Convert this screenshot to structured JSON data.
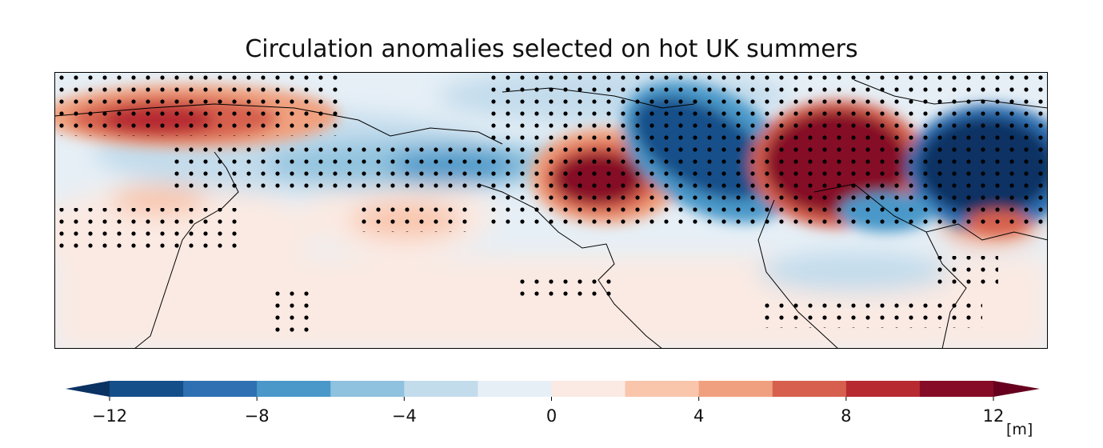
{
  "title": "Circulation anomalies selected on hot UK summers",
  "colorbar": {
    "levels": [
      -12,
      -10,
      -8,
      -6,
      -4,
      -2,
      0,
      2,
      4,
      6,
      8,
      10,
      12
    ],
    "tick_labels": [
      "−12",
      "−8",
      "−4",
      "0",
      "4",
      "8",
      "12"
    ],
    "tick_values": [
      -12,
      -8,
      -4,
      0,
      4,
      8,
      12
    ],
    "units": "[m]",
    "extend": "both",
    "colors": [
      "#154f8a",
      "#2f70b2",
      "#4a98c9",
      "#8ec2de",
      "#c3dcec",
      "#e6eff6",
      "#faeae3",
      "#f9c5ab",
      "#f0a07e",
      "#d6604d",
      "#b72a30",
      "#860b26"
    ],
    "under_color": "#0a3263",
    "over_color": "#67001f"
  }
}
